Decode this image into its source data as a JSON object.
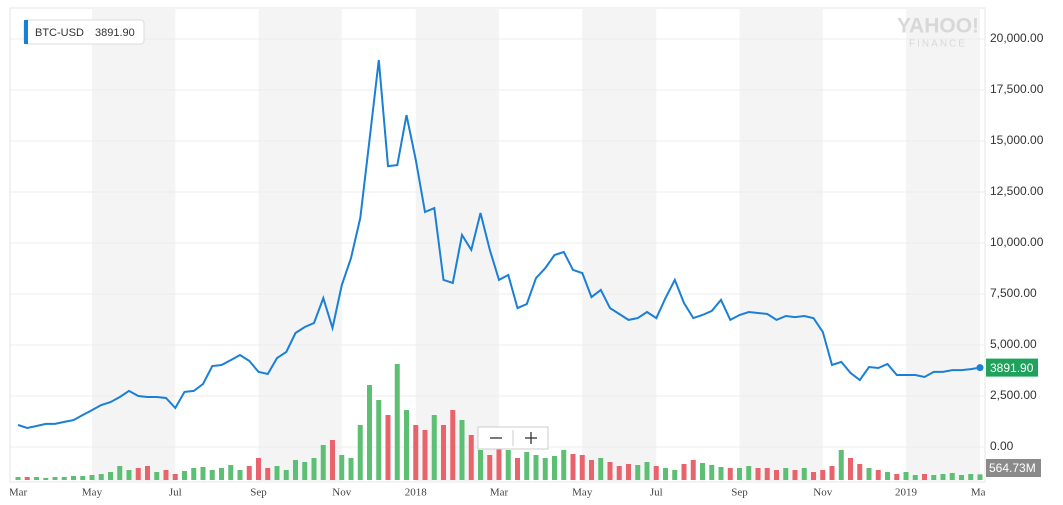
{
  "chart_data": {
    "type": "line",
    "watermark": [
      "YAHOO!",
      "FINANCE"
    ],
    "categories": [
      "Mar",
      null,
      null,
      null,
      null,
      null,
      null,
      null,
      "May",
      null,
      null,
      null,
      null,
      null,
      null,
      null,
      null,
      "Jul",
      null,
      null,
      null,
      null,
      null,
      null,
      null,
      null,
      "Sep",
      null,
      null,
      null,
      null,
      null,
      null,
      null,
      null,
      "Nov",
      null,
      null,
      null,
      null,
      null,
      null,
      null,
      "2018",
      null,
      null,
      null,
      null,
      null,
      null,
      null,
      null,
      "Mar",
      null,
      null,
      null,
      null,
      null,
      null,
      null,
      null,
      "May",
      null,
      null,
      null,
      null,
      null,
      null,
      null,
      "Jul",
      null,
      null,
      null,
      null,
      null,
      null,
      null,
      null,
      "Sep",
      null,
      null,
      null,
      null,
      null,
      null,
      null,
      null,
      "Nov",
      null,
      null,
      null,
      null,
      null,
      null,
      null,
      null,
      "2019",
      null,
      null,
      null,
      null,
      null,
      null,
      null,
      "Mar"
    ],
    "series": [
      {
        "name": "BTC-USD",
        "color": "#1a7fd6",
        "values": [
          1080,
          930,
          1030,
          1130,
          1130,
          1230,
          1320,
          1570,
          1810,
          2060,
          2200,
          2450,
          2750,
          2500,
          2450,
          2450,
          2400,
          1910,
          2700,
          2750,
          3090,
          3970,
          4020,
          4260,
          4510,
          4220,
          3680,
          3580,
          4360,
          4660,
          5590,
          5880,
          6080,
          7300,
          5830,
          7940,
          9260,
          11230,
          15050,
          18970,
          13770,
          13820,
          16270,
          14070,
          11520,
          11710,
          8190,
          8040,
          10390,
          9660,
          11470,
          9660,
          8190,
          8430,
          6810,
          7010,
          8280,
          8770,
          9410,
          9560,
          8680,
          8530,
          7350,
          7700,
          6810,
          6520,
          6230,
          6320,
          6620,
          6320,
          7300,
          8190,
          7060,
          6320,
          6470,
          6670,
          7210,
          6230,
          6470,
          6620,
          6570,
          6520,
          6230,
          6420,
          6370,
          6420,
          6320,
          5640,
          4020,
          4170,
          3630,
          3280,
          3920,
          3870,
          4070,
          3530,
          3530,
          3530,
          3430,
          3680,
          3680,
          3770,
          3770,
          3820,
          3891.9
        ],
        "value_labels": [
          null,
          null,
          null,
          null,
          null,
          null,
          null,
          null,
          null,
          null,
          null,
          null,
          null,
          null,
          null,
          null,
          null,
          null,
          null,
          null,
          null,
          null,
          null,
          null,
          null,
          null,
          null,
          null,
          null,
          null,
          null,
          null,
          null,
          null,
          null,
          null,
          null,
          null,
          null,
          null,
          null,
          null,
          null,
          null,
          null,
          null,
          null,
          null,
          null,
          null,
          null,
          null,
          null,
          null,
          null,
          null,
          null,
          null,
          null,
          null,
          null,
          null,
          null,
          null,
          null,
          null,
          null,
          null,
          null,
          null,
          null,
          null,
          null,
          null,
          null,
          null,
          null,
          null,
          null,
          null,
          null,
          null,
          null,
          null,
          null,
          null,
          null,
          null,
          null,
          null,
          null,
          null,
          null,
          null,
          null,
          null,
          null,
          null,
          null,
          null,
          null,
          null,
          null,
          null,
          "3891.90"
        ],
        "label_color": "#1fa35c"
      }
    ],
    "volume": {
      "axis": "y2",
      "up_color": "#5cbf73",
      "down_color": "#e8636b",
      "label_color": "#8a8a8a",
      "values": [
        300000000.0,
        300000000.0,
        300000000.0,
        200000000.0,
        300000000.0,
        300000000.0,
        400000000.0,
        400000000.0,
        500000000.0,
        600000000.0,
        800000000.0,
        1400000000.0,
        1000000000.0,
        1200000000.0,
        1400000000.0,
        800000000.0,
        1000000000.0,
        600000000.0,
        900000000.0,
        1200000000.0,
        1300000000.0,
        1000000000.0,
        1200000000.0,
        1500000000.0,
        1000000000.0,
        1400000000.0,
        2200000000.0,
        1200000000.0,
        1400000000.0,
        1000000000.0,
        2000000000.0,
        1800000000.0,
        2200000000.0,
        3500000000.0,
        4000000000.0,
        2500000000.0,
        2200000000.0,
        5500000000.0,
        9500000000.0,
        8000000000.0,
        6500000000.0,
        11600000000.0,
        7000000000.0,
        5500000000.0,
        5000000000.0,
        6500000000.0,
        5500000000.0,
        7000000000.0,
        6000000000.0,
        4500000000.0,
        3000000000.0,
        2500000000.0,
        3200000000.0,
        3000000000.0,
        2200000000.0,
        2800000000.0,
        2500000000.0,
        2200000000.0,
        2400000000.0,
        3000000000.0,
        2600000000.0,
        2500000000.0,
        2000000000.0,
        2200000000.0,
        1800000000.0,
        1400000000.0,
        1600000000.0,
        1500000000.0,
        1800000000.0,
        1400000000.0,
        1200000000.0,
        1000000000.0,
        1600000000.0,
        2000000000.0,
        1700000000.0,
        1500000000.0,
        1300000000.0,
        1200000000.0,
        1200000000.0,
        1400000000.0,
        1200000000.0,
        1200000000.0,
        1000000000.0,
        1200000000.0,
        1000000000.0,
        1200000000.0,
        800000000.0,
        1000000000.0,
        1400000000.0,
        3000000000.0,
        2200000000.0,
        1600000000.0,
        1200000000.0,
        1000000000.0,
        800000000.0,
        600000000.0,
        800000000.0,
        500000000.0,
        600000000.0,
        500000000.0,
        600000000.0,
        700000000.0,
        500000000.0,
        600000000.0,
        564730000
      ],
      "value_labels": [
        null,
        null,
        null,
        null,
        null,
        null,
        null,
        null,
        null,
        null,
        null,
        null,
        null,
        null,
        null,
        null,
        null,
        null,
        null,
        null,
        null,
        null,
        null,
        null,
        null,
        null,
        null,
        null,
        null,
        null,
        null,
        null,
        null,
        null,
        null,
        null,
        null,
        null,
        null,
        null,
        null,
        null,
        null,
        null,
        null,
        null,
        null,
        null,
        null,
        null,
        null,
        null,
        null,
        null,
        null,
        null,
        null,
        null,
        null,
        null,
        null,
        null,
        null,
        null,
        null,
        null,
        null,
        null,
        null,
        null,
        null,
        null,
        null,
        null,
        null,
        null,
        null,
        null,
        null,
        null,
        null,
        null,
        null,
        null,
        null,
        null,
        null,
        null,
        null,
        null,
        null,
        null,
        null,
        null,
        null,
        null,
        null,
        null,
        null,
        null,
        null,
        null,
        null,
        null,
        "564.73M"
      ]
    },
    "y2lim": [
      0,
      20000000000
    ],
    "ylim": [
      -1716,
      21520
    ],
    "yticks": [
      {
        "value": 0,
        "label": "0.00"
      },
      {
        "value": 2500,
        "label": "2,500.00"
      },
      {
        "value": 5000,
        "label": "5,000.00"
      },
      {
        "value": 7500,
        "label": "7,500.00"
      },
      {
        "value": 10000,
        "label": "10,000.00"
      },
      {
        "value": 12500,
        "label": "12,500.00"
      },
      {
        "value": 15000,
        "label": "15,000.00"
      },
      {
        "value": 17500,
        "label": "17,500.00"
      },
      {
        "value": 20000,
        "label": "20,000.00"
      }
    ],
    "grid": true
  }
}
